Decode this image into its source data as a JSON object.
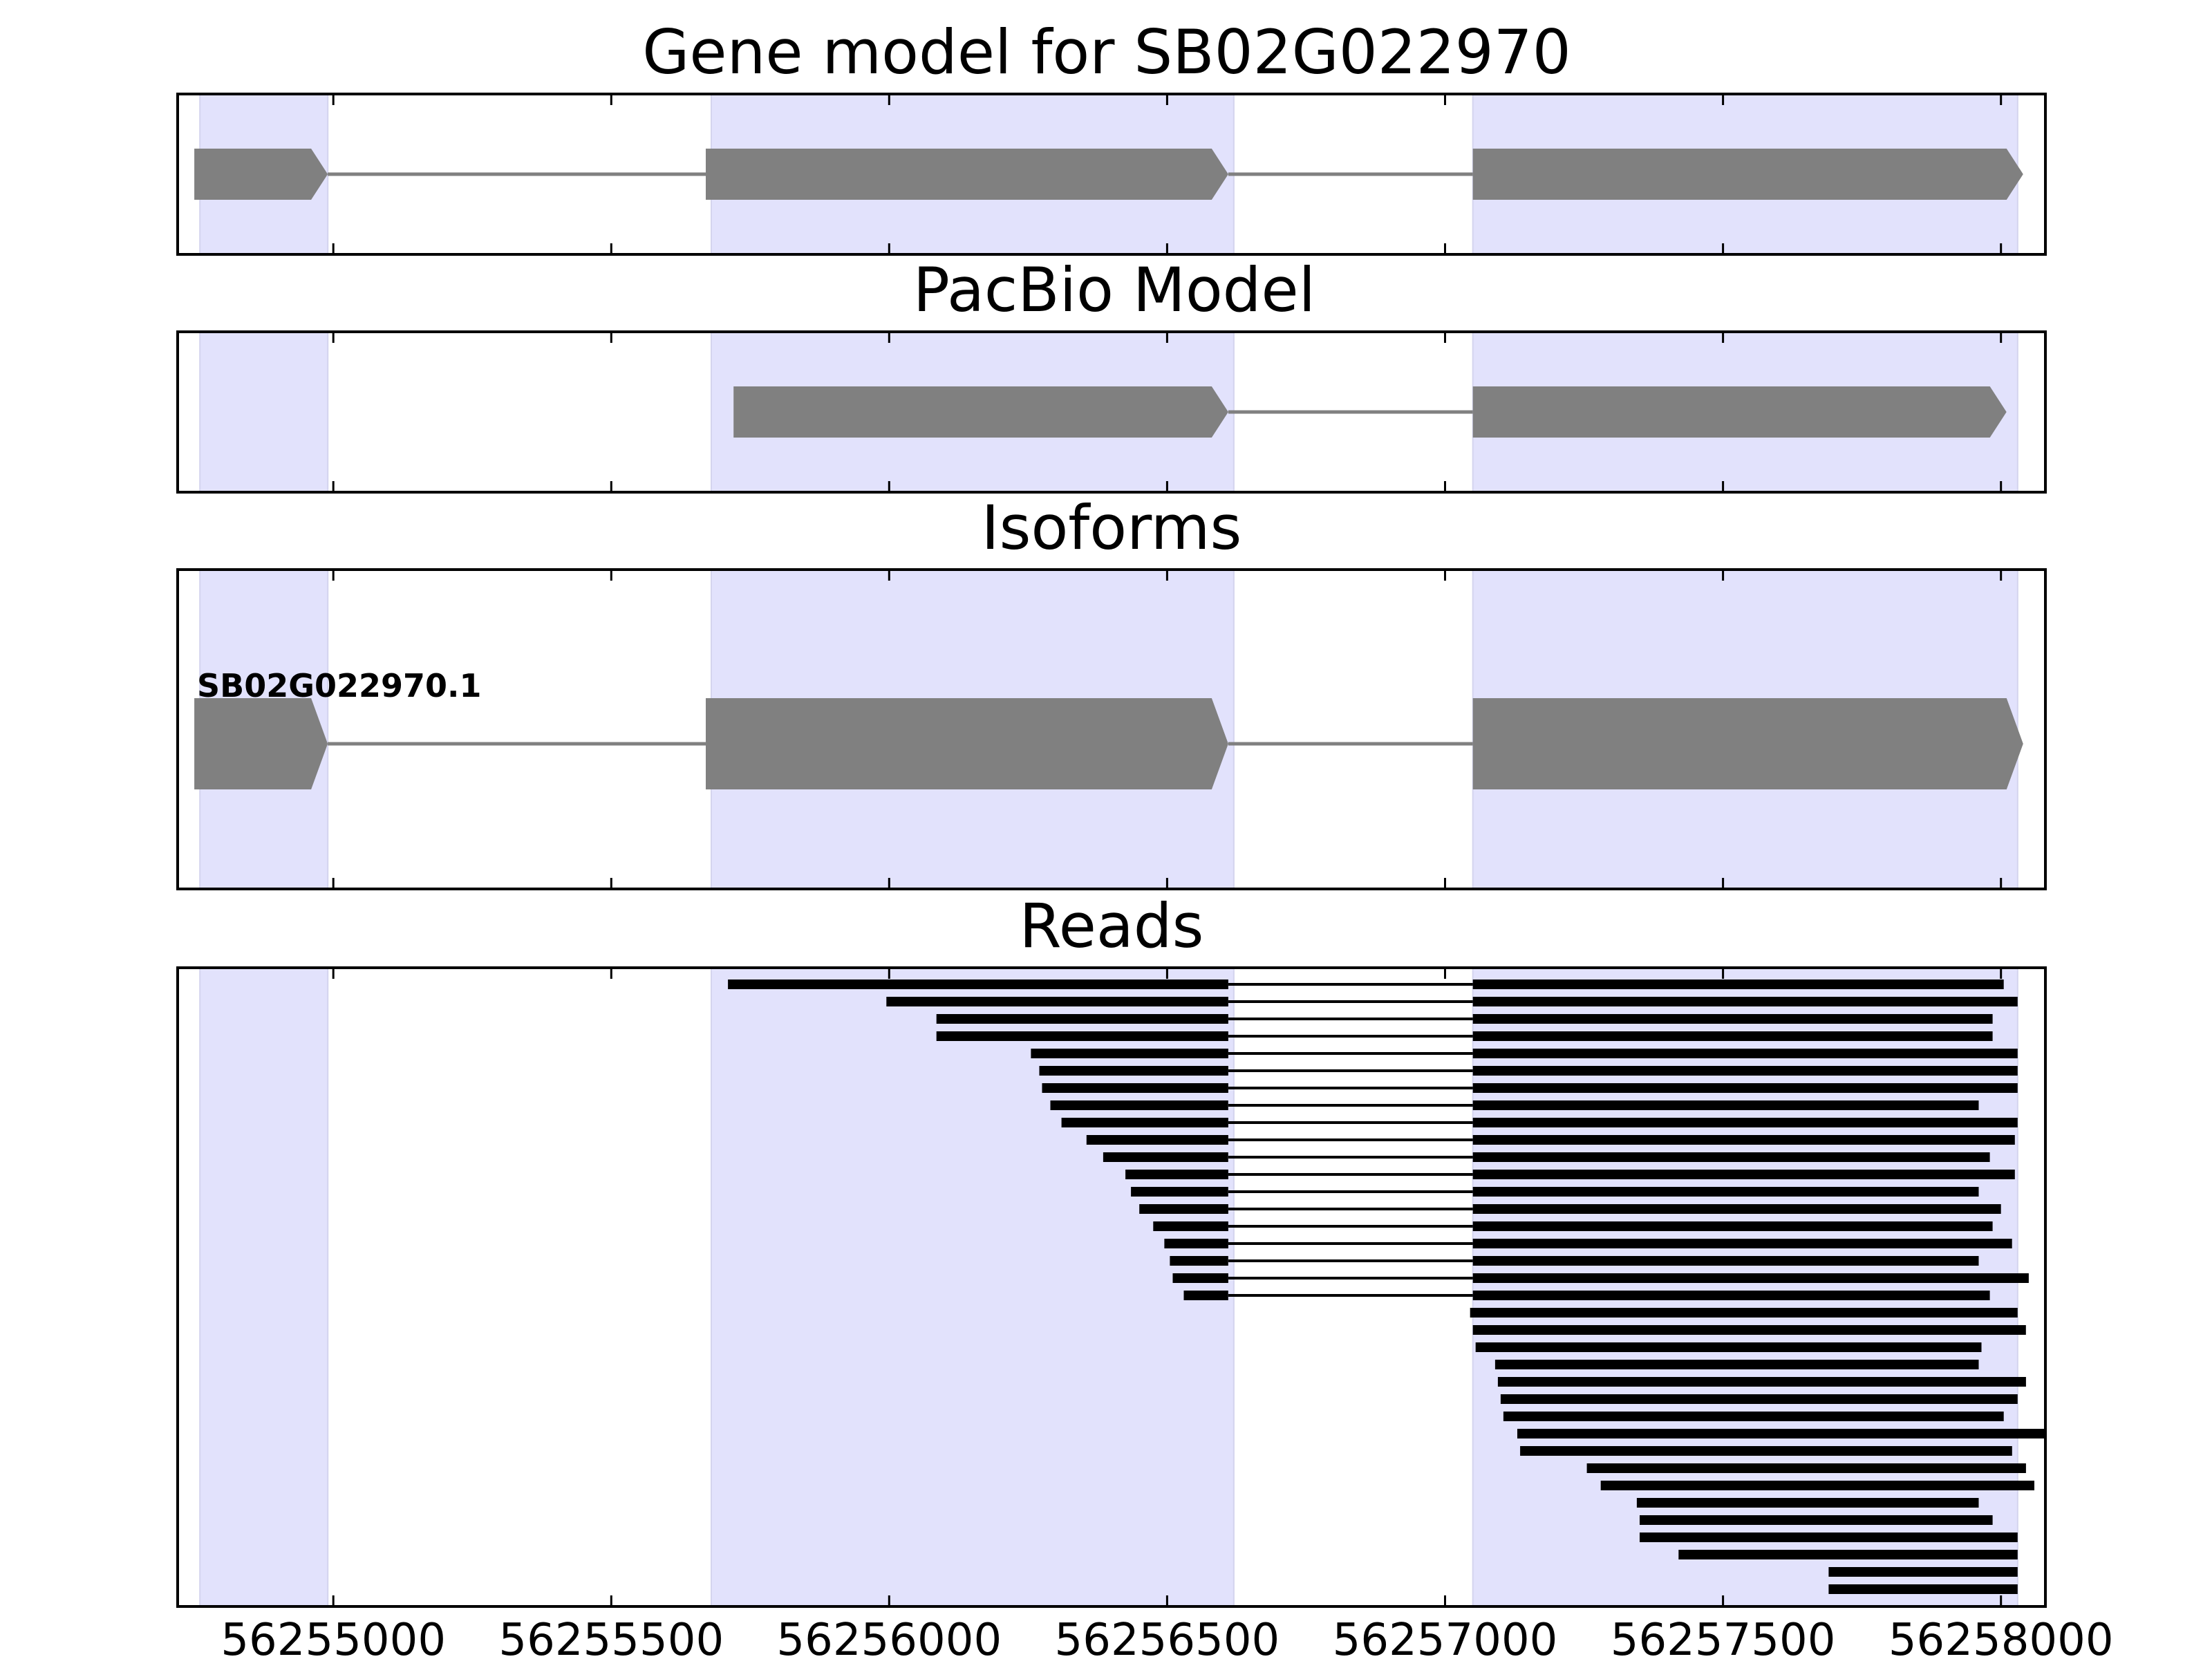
{
  "chart_data": {
    "type": "gene-structure",
    "x_axis": {
      "range": [
        56254720,
        56258080
      ],
      "tick_values": [
        56255000,
        56255500,
        56256000,
        56256500,
        56257000,
        56257500,
        56258000
      ],
      "tick_labels": [
        "56255000",
        "56255500",
        "56256000",
        "56256500",
        "56257000",
        "56257500",
        "56258000"
      ]
    },
    "highlight_regions": [
      [
        56254760,
        56254990
      ],
      [
        56255680,
        56256620
      ],
      [
        56257050,
        56258030
      ]
    ],
    "colors": {
      "highlight": "#e2e2fc",
      "model": "#808080",
      "reads": "#000000",
      "axes": "#000000"
    },
    "panels": [
      {
        "id": "gene-model",
        "title": "Gene model for SB02G022970",
        "strand": "+",
        "exons": [
          [
            56254750,
            56254990
          ],
          [
            56255670,
            56256610
          ],
          [
            56257050,
            56258040
          ]
        ]
      },
      {
        "id": "pacbio-model",
        "title": "PacBio Model",
        "strand": "+",
        "exons": [
          [
            56255720,
            56256610
          ],
          [
            56257050,
            56258010
          ]
        ]
      },
      {
        "id": "isoforms",
        "title": "Isoforms",
        "strand": "+",
        "isoforms": [
          {
            "label": "SB02G022970.1",
            "exons": [
              [
                56254750,
                56254990
              ],
              [
                56255670,
                56256610
              ],
              [
                56257050,
                56258040
              ]
            ]
          }
        ]
      },
      {
        "id": "reads",
        "title": "Reads",
        "reads": [
          [
            [
              56255710,
              56256610
            ],
            [
              56257050,
              56258005
            ]
          ],
          [
            [
              56255995,
              56256610
            ],
            [
              56257050,
              56258030
            ]
          ],
          [
            [
              56256085,
              56256610
            ],
            [
              56257050,
              56257985
            ]
          ],
          [
            [
              56256085,
              56256610
            ],
            [
              56257050,
              56257985
            ]
          ],
          [
            [
              56256255,
              56256610
            ],
            [
              56257050,
              56258030
            ]
          ],
          [
            [
              56256270,
              56256610
            ],
            [
              56257050,
              56258030
            ]
          ],
          [
            [
              56256275,
              56256610
            ],
            [
              56257050,
              56258030
            ]
          ],
          [
            [
              56256290,
              56256610
            ],
            [
              56257050,
              56257960
            ]
          ],
          [
            [
              56256310,
              56256610
            ],
            [
              56257050,
              56258030
            ]
          ],
          [
            [
              56256355,
              56256610
            ],
            [
              56257050,
              56258025
            ]
          ],
          [
            [
              56256385,
              56256610
            ],
            [
              56257050,
              56257980
            ]
          ],
          [
            [
              56256425,
              56256610
            ],
            [
              56257050,
              56258025
            ]
          ],
          [
            [
              56256435,
              56256610
            ],
            [
              56257050,
              56257960
            ]
          ],
          [
            [
              56256450,
              56256610
            ],
            [
              56257050,
              56258000
            ]
          ],
          [
            [
              56256475,
              56256610
            ],
            [
              56257050,
              56257985
            ]
          ],
          [
            [
              56256495,
              56256610
            ],
            [
              56257050,
              56258020
            ]
          ],
          [
            [
              56256505,
              56256610
            ],
            [
              56257050,
              56257960
            ]
          ],
          [
            [
              56256510,
              56256610
            ],
            [
              56257050,
              56258050
            ]
          ],
          [
            [
              56256530,
              56256610
            ],
            [
              56257050,
              56257980
            ]
          ],
          [
            [
              56257045,
              56258030
            ]
          ],
          [
            [
              56257050,
              56258045
            ]
          ],
          [
            [
              56257055,
              56257965
            ]
          ],
          [
            [
              56257090,
              56257960
            ]
          ],
          [
            [
              56257095,
              56258045
            ]
          ],
          [
            [
              56257100,
              56258030
            ]
          ],
          [
            [
              56257105,
              56258005
            ]
          ],
          [
            [
              56257130,
              56258080
            ]
          ],
          [
            [
              56257135,
              56258020
            ]
          ],
          [
            [
              56257255,
              56258045
            ]
          ],
          [
            [
              56257280,
              56258060
            ]
          ],
          [
            [
              56257345,
              56257960
            ]
          ],
          [
            [
              56257350,
              56257985
            ]
          ],
          [
            [
              56257350,
              56258030
            ]
          ],
          [
            [
              56257420,
              56258030
            ]
          ],
          [
            [
              56257690,
              56258030
            ]
          ],
          [
            [
              56257690,
              56258030
            ]
          ]
        ]
      }
    ]
  }
}
